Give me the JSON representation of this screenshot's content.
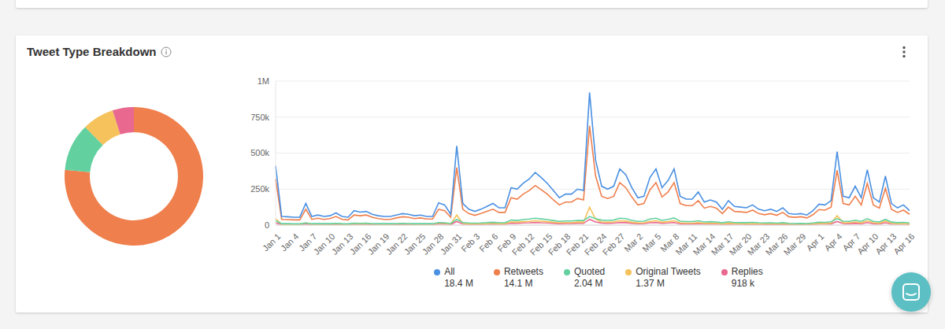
{
  "chart_data": [
    {
      "type": "pie",
      "title": "Tweet Type Breakdown",
      "categories": [
        "Retweets",
        "Quoted",
        "Original Tweets",
        "Replies"
      ],
      "values": [
        14100000,
        2040000,
        1370000,
        918000
      ],
      "colors": [
        "#ef7f4c",
        "#62d09f",
        "#f5c25c",
        "#e8688f"
      ]
    },
    {
      "type": "line",
      "legend": "bottom",
      "grid": true,
      "categories": [
        "Jan 1",
        null,
        null,
        "Jan 4",
        null,
        null,
        "Jan 7",
        null,
        null,
        "Jan 10",
        null,
        null,
        "Jan 13",
        null,
        null,
        "Jan 16",
        null,
        null,
        "Jan 19",
        null,
        null,
        "Jan 22",
        null,
        null,
        "Jan 25",
        null,
        null,
        "Jan 28",
        null,
        null,
        "Jan 31",
        null,
        null,
        "Feb 3",
        null,
        null,
        "Feb 6",
        null,
        null,
        "Feb 9",
        null,
        null,
        "Feb 12",
        null,
        null,
        "Feb 15",
        null,
        null,
        "Feb 18",
        null,
        null,
        "Feb 21",
        null,
        null,
        "Feb 24",
        null,
        null,
        "Feb 27",
        null,
        null,
        "Mar 2",
        null,
        null,
        "Mar 5",
        null,
        null,
        "Mar 8",
        null,
        null,
        "Mar 11",
        null,
        null,
        "Mar 14",
        null,
        null,
        "Mar 17",
        null,
        null,
        "Mar 20",
        null,
        null,
        "Mar 23",
        null,
        null,
        "Mar 26",
        null,
        null,
        "Mar 29",
        null,
        null,
        "Apr 1",
        null,
        null,
        "Apr 4",
        null,
        null,
        "Apr 7",
        null,
        null,
        "Apr 10",
        null,
        null,
        "Apr 13",
        null,
        null,
        "Apr 16"
      ],
      "ylim": [
        0,
        1000000
      ],
      "yticks": [
        0,
        {
          "value": 250000,
          "label": "250k"
        },
        {
          "value": 500000,
          "label": "500k"
        },
        {
          "value": 750000,
          "label": "750k"
        },
        {
          "value": 1000000,
          "label": "1M"
        }
      ],
      "series": [
        {
          "name": "All",
          "color": "#4a90e2",
          "total_label": "18.4 M",
          "values": [
            410000,
            60000,
            58000,
            55000,
            55000,
            150000,
            60000,
            70000,
            60000,
            65000,
            85000,
            60000,
            55000,
            100000,
            90000,
            95000,
            75000,
            65000,
            60000,
            60000,
            70000,
            80000,
            75000,
            65000,
            70000,
            60000,
            60000,
            155000,
            140000,
            75000,
            550000,
            150000,
            110000,
            95000,
            110000,
            130000,
            150000,
            120000,
            120000,
            260000,
            250000,
            290000,
            320000,
            365000,
            330000,
            290000,
            240000,
            190000,
            215000,
            215000,
            250000,
            240000,
            920000,
            450000,
            270000,
            250000,
            270000,
            390000,
            350000,
            260000,
            190000,
            200000,
            330000,
            390000,
            260000,
            310000,
            390000,
            200000,
            180000,
            180000,
            230000,
            160000,
            175000,
            160000,
            110000,
            170000,
            130000,
            125000,
            120000,
            140000,
            110000,
            100000,
            110000,
            95000,
            120000,
            80000,
            75000,
            80000,
            70000,
            100000,
            145000,
            140000,
            170000,
            510000,
            200000,
            190000,
            270000,
            190000,
            385000,
            190000,
            160000,
            340000,
            150000,
            120000,
            140000,
            100000
          ]
        },
        {
          "name": "Retweets",
          "color": "#ef7f4c",
          "total_label": "14.1 M",
          "values": [
            320000,
            40000,
            38000,
            36000,
            36000,
            110000,
            40000,
            48000,
            40000,
            45000,
            60000,
            40000,
            36000,
            70000,
            65000,
            70000,
            55000,
            45000,
            40000,
            40000,
            50000,
            58000,
            55000,
            45000,
            50000,
            42000,
            42000,
            110000,
            100000,
            55000,
            400000,
            110000,
            80000,
            68000,
            80000,
            95000,
            110000,
            88000,
            88000,
            190000,
            180000,
            215000,
            240000,
            275000,
            245000,
            215000,
            175000,
            140000,
            160000,
            160000,
            185000,
            175000,
            690000,
            340000,
            200000,
            185000,
            200000,
            295000,
            260000,
            195000,
            140000,
            150000,
            245000,
            295000,
            195000,
            230000,
            295000,
            150000,
            135000,
            135000,
            170000,
            118000,
            130000,
            118000,
            80000,
            125000,
            95000,
            92000,
            88000,
            104000,
            80000,
            72000,
            80000,
            68000,
            88000,
            58000,
            54000,
            58000,
            50000,
            72000,
            108000,
            104000,
            125000,
            380000,
            150000,
            140000,
            200000,
            140000,
            290000,
            140000,
            118000,
            255000,
            110000,
            88000,
            104000,
            75000
          ]
        },
        {
          "name": "Quoted",
          "color": "#62d09f",
          "total_label": "2.04 M",
          "values": [
            30000,
            10000,
            10000,
            9000,
            9000,
            15000,
            10000,
            11000,
            10000,
            10000,
            12000,
            10000,
            9000,
            13000,
            12000,
            13000,
            11000,
            10000,
            10000,
            10000,
            11000,
            12000,
            11000,
            10000,
            11000,
            10000,
            10000,
            18000,
            16000,
            11000,
            40000,
            18000,
            15000,
            14000,
            15000,
            17000,
            20000,
            16000,
            16000,
            35000,
            32000,
            38000,
            42000,
            48000,
            43000,
            38000,
            32000,
            26000,
            29000,
            29000,
            33000,
            32000,
            60000,
            45000,
            35000,
            33000,
            35000,
            48000,
            45000,
            33000,
            26000,
            27000,
            42000,
            48000,
            33000,
            40000,
            50000,
            27000,
            25000,
            25000,
            30000,
            22000,
            24000,
            22000,
            16000,
            23000,
            18000,
            17000,
            17000,
            19000,
            16000,
            15000,
            16000,
            14000,
            17000,
            12000,
            11000,
            12000,
            11000,
            15000,
            20000,
            19000,
            23000,
            45000,
            27000,
            26000,
            34000,
            26000,
            45000,
            26000,
            22000,
            40000,
            21000,
            17000,
            19000,
            15000
          ]
        },
        {
          "name": "Original Tweets",
          "color": "#f5c25c",
          "total_label": "1.37 M",
          "values": [
            45000,
            5000,
            5000,
            5000,
            5000,
            15000,
            6000,
            7000,
            6000,
            6000,
            8000,
            6000,
            5000,
            9000,
            8000,
            9000,
            7000,
            6000,
            6000,
            6000,
            7000,
            8000,
            7000,
            6000,
            7000,
            6000,
            6000,
            14000,
            12000,
            7000,
            70000,
            12000,
            9000,
            8000,
            9000,
            10000,
            12000,
            10000,
            10000,
            22000,
            20000,
            24000,
            26000,
            30000,
            27000,
            24000,
            20000,
            16000,
            18000,
            18000,
            21000,
            20000,
            125000,
            40000,
            22000,
            20000,
            22000,
            30000,
            28000,
            20000,
            15000,
            16000,
            26000,
            30000,
            20000,
            24000,
            30000,
            16000,
            14000,
            14000,
            18000,
            12000,
            14000,
            12000,
            9000,
            13000,
            10000,
            10000,
            9000,
            11000,
            9000,
            8000,
            9000,
            8000,
            10000,
            7000,
            6000,
            7000,
            6000,
            8000,
            12000,
            11000,
            14000,
            65000,
            17000,
            16000,
            22000,
            16000,
            30000,
            16000,
            13000,
            28000,
            12000,
            10000,
            11000,
            8000
          ]
        },
        {
          "name": "Replies",
          "color": "#e8688f",
          "total_label": "918 k",
          "values": [
            15000,
            4000,
            4000,
            4000,
            4000,
            8000,
            4000,
            5000,
            4000,
            4000,
            5000,
            4000,
            4000,
            6000,
            6000,
            6000,
            5000,
            4000,
            4000,
            4000,
            5000,
            5000,
            5000,
            4000,
            5000,
            4000,
            4000,
            8000,
            8000,
            5000,
            25000,
            8000,
            6000,
            6000,
            6000,
            7000,
            8000,
            7000,
            7000,
            14000,
            13000,
            15000,
            16000,
            18000,
            16000,
            15000,
            13000,
            10000,
            11000,
            11000,
            13000,
            12000,
            40000,
            22000,
            14000,
            13000,
            14000,
            18000,
            17000,
            13000,
            10000,
            11000,
            16000,
            18000,
            13000,
            15000,
            18000,
            10000,
            9000,
            9000,
            11000,
            8000,
            9000,
            8000,
            6000,
            8000,
            7000,
            7000,
            6000,
            7000,
            6000,
            5000,
            6000,
            5000,
            6000,
            5000,
            4000,
            5000,
            4000,
            6000,
            8000,
            8000,
            9000,
            25000,
            11000,
            10000,
            13000,
            10000,
            18000,
            10000,
            9000,
            16000,
            8000,
            7000,
            8000,
            6000
          ]
        }
      ]
    }
  ]
}
